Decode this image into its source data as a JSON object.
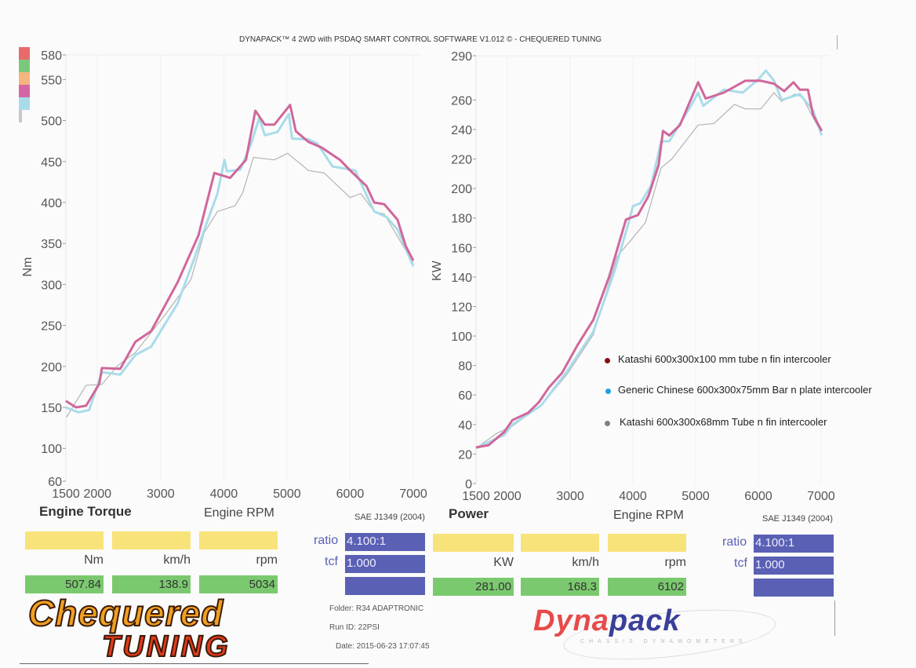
{
  "header": {
    "title": "DYNAPACK™ 4 2WD with PSDAQ SMART CONTROL SOFTWARE V1.012 © - CHEQUERED TUNING"
  },
  "colors": {
    "katashi_100": "#d0679a",
    "generic_75": "#a9dcea",
    "katashi_68": "#b4b4b4",
    "legend_dot_1": "#8b0a14",
    "legend_dot_2": "#1ea0e0",
    "legend_dot_3": "#808080"
  },
  "swatches": [
    "#e86a6a",
    "#7cc87a",
    "#f4b57e",
    "#d466a6",
    "#a9dcea",
    "#c8c8c8"
  ],
  "legend": [
    {
      "label": "Katashi 600x300x100 mm tube n fin intercooler"
    },
    {
      "label": "Generic Chinese 600x300x75mm Bar n plate intercooler"
    },
    {
      "label": "Katashi 600x300x68mm Tube n fin intercooler"
    }
  ],
  "chart_data": [
    {
      "type": "line",
      "title": "Engine Torque",
      "xlabel": "Engine RPM",
      "ylabel": "Nm",
      "standard": "SAE J1349 (2004)",
      "xlim": [
        1500,
        7000
      ],
      "ylim": [
        60,
        580
      ],
      "xticks": [
        1500,
        2000,
        3000,
        4000,
        5000,
        6000,
        7000
      ],
      "yticks": [
        580,
        550,
        500,
        450,
        400,
        350,
        300,
        250,
        200,
        150,
        100,
        60
      ],
      "grid": false,
      "series": [
        {
          "name": "Katashi 600x300x100 mm tube n fin intercooler",
          "color": "#d0679a",
          "x": [
            1500,
            1660,
            1820,
            2030,
            2070,
            2360,
            2600,
            2850,
            3270,
            3600,
            3850,
            4100,
            4350,
            4500,
            4650,
            4800,
            5050,
            5140,
            5340,
            5550,
            5840,
            6000,
            6260,
            6380,
            6540,
            6750,
            6880,
            7000
          ],
          "y": [
            158,
            150,
            152,
            179,
            198,
            197,
            230,
            243,
            303,
            360,
            436,
            430,
            452,
            512,
            495,
            495,
            519,
            487,
            474,
            467,
            452,
            439,
            420,
            400,
            398,
            379,
            347,
            329
          ]
        },
        {
          "name": "Generic Chinese 600x300x75mm Bar n plate intercooler",
          "color": "#a9dcea",
          "x": [
            1500,
            1700,
            1870,
            2070,
            2360,
            2600,
            2850,
            3270,
            3520,
            3720,
            3900,
            4010,
            4050,
            4260,
            4430,
            4560,
            4650,
            4850,
            5030,
            5080,
            5340,
            5480,
            5720,
            6080,
            6380,
            6580,
            6750,
            7000
          ],
          "y": [
            150,
            144,
            147,
            193,
            190,
            214,
            224,
            277,
            329,
            373,
            411,
            452,
            438,
            440,
            471,
            503,
            482,
            486,
            508,
            478,
            477,
            472,
            444,
            439,
            389,
            382,
            367,
            322
          ]
        },
        {
          "name": "Katashi 600x300x68mm Tube n fin intercooler",
          "color": "#b4b4b4",
          "x": [
            1510,
            1820,
            2070,
            2320,
            2600,
            3060,
            3480,
            3690,
            3900,
            4180,
            4300,
            4470,
            4800,
            5010,
            5340,
            5590,
            6000,
            6170,
            6380,
            6540,
            7000
          ],
          "y": [
            138,
            177,
            178,
            201,
            217,
            262,
            306,
            363,
            389,
            396,
            412,
            455,
            452,
            460,
            439,
            436,
            406,
            411,
            389,
            386,
            326
          ]
        }
      ],
      "readout": {
        "ratio_label": "ratio",
        "ratio": "4.100:1",
        "tcf_label": "tcf",
        "tcf": "1.000",
        "units": [
          "Nm",
          "km/h",
          "rpm"
        ],
        "values": [
          "507.84",
          "138.9",
          "5034"
        ]
      }
    },
    {
      "type": "line",
      "title": "Power",
      "xlabel": "Engine RPM",
      "ylabel": "KW",
      "standard": "SAE J1349 (2004)",
      "xlim": [
        1500,
        7000
      ],
      "ylim": [
        0,
        290
      ],
      "xticks": [
        1500,
        2000,
        3000,
        4000,
        5000,
        6000,
        7000
      ],
      "yticks": [
        290,
        260,
        240,
        220,
        200,
        180,
        160,
        140,
        120,
        100,
        80,
        60,
        40,
        20,
        0
      ],
      "grid": false,
      "series": [
        {
          "name": "Katashi 600x300x100 mm tube n fin intercooler",
          "color": "#d0679a",
          "x": [
            1500,
            1700,
            1950,
            2080,
            2330,
            2500,
            2660,
            2870,
            3120,
            3370,
            3620,
            3890,
            4080,
            4250,
            4410,
            4480,
            4580,
            4750,
            5040,
            5160,
            5450,
            5790,
            6040,
            6250,
            6410,
            6560,
            6660,
            6790,
            6870,
            7010
          ],
          "y": [
            24.5,
            26,
            35,
            43,
            48,
            55,
            65,
            75,
            94,
            111,
            140,
            179,
            182,
            195,
            216,
            239,
            236,
            243,
            272,
            261,
            265,
            273,
            273,
            271,
            266,
            272,
            267,
            267,
            250,
            239
          ]
        },
        {
          "name": "Generic Chinese 600x300x75mm Bar n plate intercooler",
          "color": "#a9dcea",
          "x": [
            1500,
            1950,
            2080,
            2540,
            2950,
            3370,
            3700,
            3920,
            4000,
            4120,
            4290,
            4450,
            4580,
            4910,
            5040,
            5120,
            5450,
            5750,
            6000,
            6120,
            6250,
            6370,
            6660,
            6870,
            7010
          ],
          "y": [
            24,
            33,
            40,
            53,
            76,
            103,
            143,
            175,
            188,
            190,
            202,
            232,
            232,
            255,
            265,
            256,
            267,
            265,
            274,
            280,
            273,
            260,
            264,
            253,
            236
          ]
        },
        {
          "name": "Katashi 600x300x68mm Tube n fin intercooler",
          "color": "#b4b4b4",
          "x": [
            1500,
            1830,
            2080,
            2540,
            2950,
            3370,
            3750,
            3950,
            4200,
            4450,
            4620,
            5040,
            5290,
            5620,
            5790,
            6040,
            6250,
            6370,
            6580,
            6700,
            7010
          ],
          "y": [
            24,
            34,
            39,
            53,
            74,
            101,
            154,
            164,
            177,
            214,
            220,
            243,
            244,
            257,
            254,
            254,
            265,
            259,
            264,
            262,
            237
          ]
        }
      ],
      "readout": {
        "ratio_label": "ratio",
        "ratio": "4.100:1",
        "tcf_label": "tcf",
        "tcf": "1.000",
        "units": [
          "KW",
          "km/h",
          "rpm"
        ],
        "values": [
          "281.00",
          "168.3",
          "6102"
        ]
      }
    }
  ],
  "run_info": {
    "folder": "Folder:  R34 ADAPTRONIC",
    "run_id": "Run ID:  22PSI",
    "date": "Date:  2015-06-23 17:07:45"
  },
  "logos": {
    "chequered_line1": "Chequered",
    "chequered_line2": "TUNING",
    "dynapack_red": "Dyna",
    "dynapack_blue": "pack",
    "dynapack_sub": "CHASSIS DYNAMOMETERS"
  }
}
